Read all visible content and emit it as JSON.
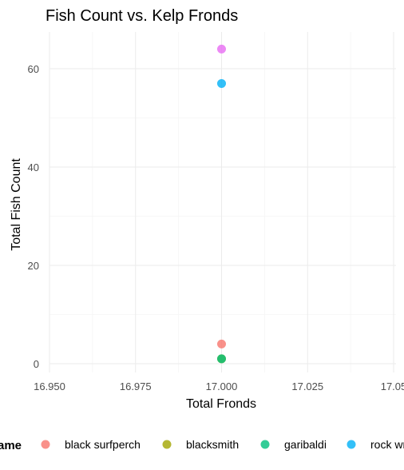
{
  "chart_data": {
    "type": "scatter",
    "title": "Fish Count vs. Kelp Fronds",
    "xlabel": "Total Fronds",
    "ylabel": "Total Fish Count",
    "xlim": [
      16.95,
      17.05
    ],
    "ylim": [
      0,
      64
    ],
    "x_ticks": [
      16.95,
      16.975,
      17.0,
      17.025,
      17.05
    ],
    "x_tick_labels": [
      "16.950",
      "16.975",
      "17.000",
      "17.025",
      "17.05"
    ],
    "y_ticks": [
      0,
      20,
      40,
      60
    ],
    "y_tick_labels": [
      "0",
      "20",
      "40",
      "60"
    ],
    "grid": true,
    "legend_position": "bottom",
    "legend_title": "ame",
    "series": [
      {
        "name": "black surfperch",
        "color": "#F8766D",
        "points": [
          {
            "x": 17.0,
            "y": 4
          }
        ]
      },
      {
        "name": "blacksmith",
        "color": "#A3A500",
        "points": [
          {
            "x": 17.0,
            "y": 1
          }
        ]
      },
      {
        "name": "garibaldi",
        "color": "#00BF7D",
        "points": [
          {
            "x": 17.0,
            "y": 1
          }
        ]
      },
      {
        "name": "rock wr",
        "color": "#00B0F6",
        "points": [
          {
            "x": 17.0,
            "y": 57
          }
        ]
      },
      {
        "name": "",
        "color": "#E76BF3",
        "points": [
          {
            "x": 17.0,
            "y": 64
          }
        ]
      }
    ]
  }
}
